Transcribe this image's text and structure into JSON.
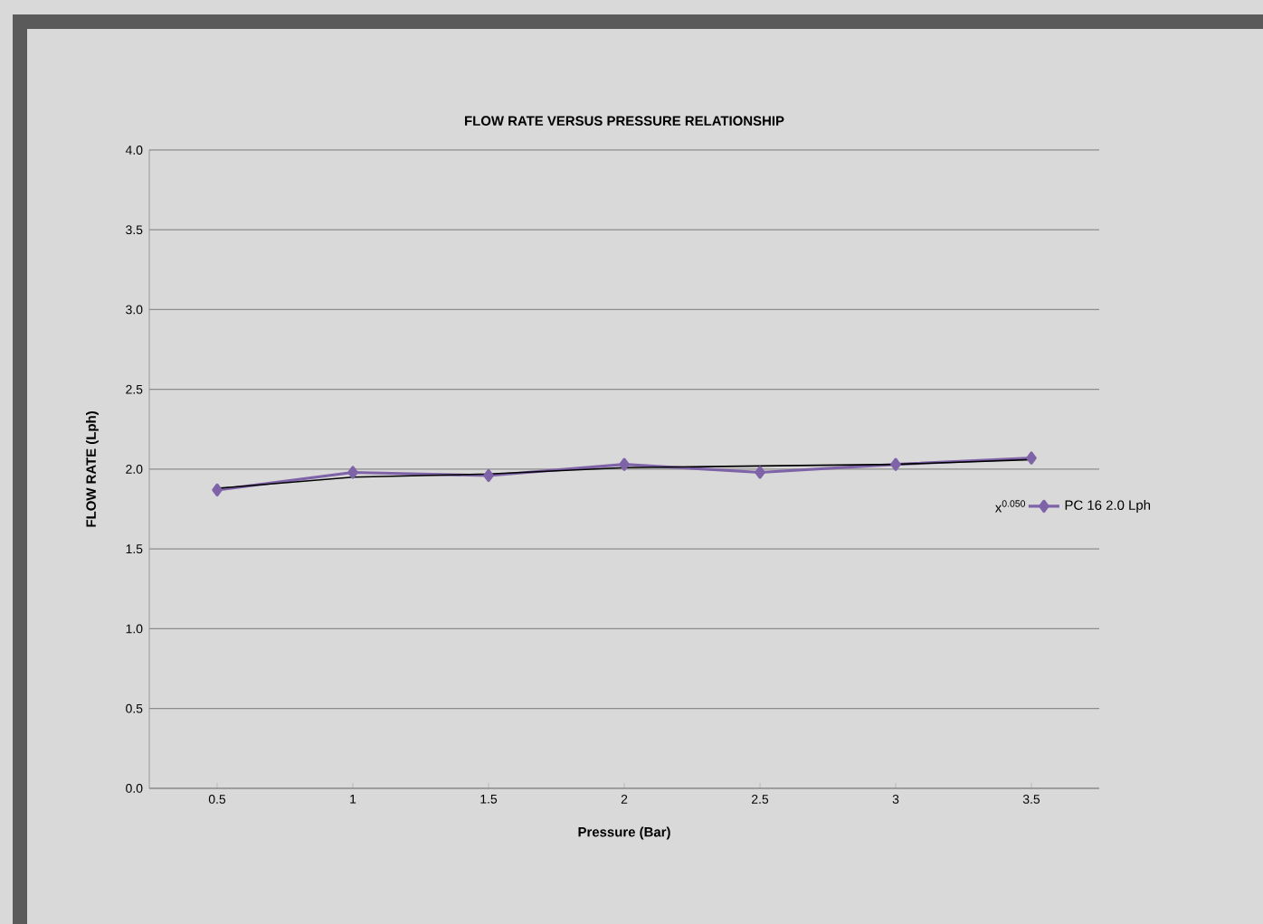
{
  "chart_data": {
    "type": "line",
    "title": "FLOW RATE VERSUS PRESSURE RELATIONSHIP",
    "xlabel": "Pressure (Bar)",
    "ylabel": "FLOW RATE (Lph)",
    "categories": [
      "0.5",
      "1",
      "1.5",
      "2",
      "2.5",
      "3",
      "3.5"
    ],
    "series": [
      {
        "name": "PC 16 2.0  Lph",
        "color": "#7f63a8",
        "values": [
          1.87,
          1.98,
          1.96,
          2.03,
          1.98,
          2.03,
          2.07
        ],
        "marker": "diamond"
      },
      {
        "color": "#000000",
        "values": [
          1.88,
          1.95,
          1.97,
          2.01,
          2.02,
          2.03,
          2.06
        ],
        "marker": "none"
      }
    ],
    "annotations": [
      "x$^{0.050}$"
    ],
    "ylim": [
      0,
      4
    ],
    "yticks": [
      {
        "value": 0,
        "label": "0.0"
      },
      {
        "value": 0.5,
        "label": "0.5"
      },
      {
        "value": 1,
        "label": "1.0"
      },
      {
        "value": 1.5,
        "label": "1.5"
      },
      {
        "value": 2,
        "label": "2.0"
      },
      {
        "value": 2.5,
        "label": "2.5"
      },
      {
        "value": 3,
        "label": "3.0"
      },
      {
        "value": 3.5,
        "label": "3.5"
      },
      {
        "value": 4,
        "label": "4.0"
      }
    ],
    "grid": "y",
    "legend": "right",
    "line_style": "solid"
  }
}
